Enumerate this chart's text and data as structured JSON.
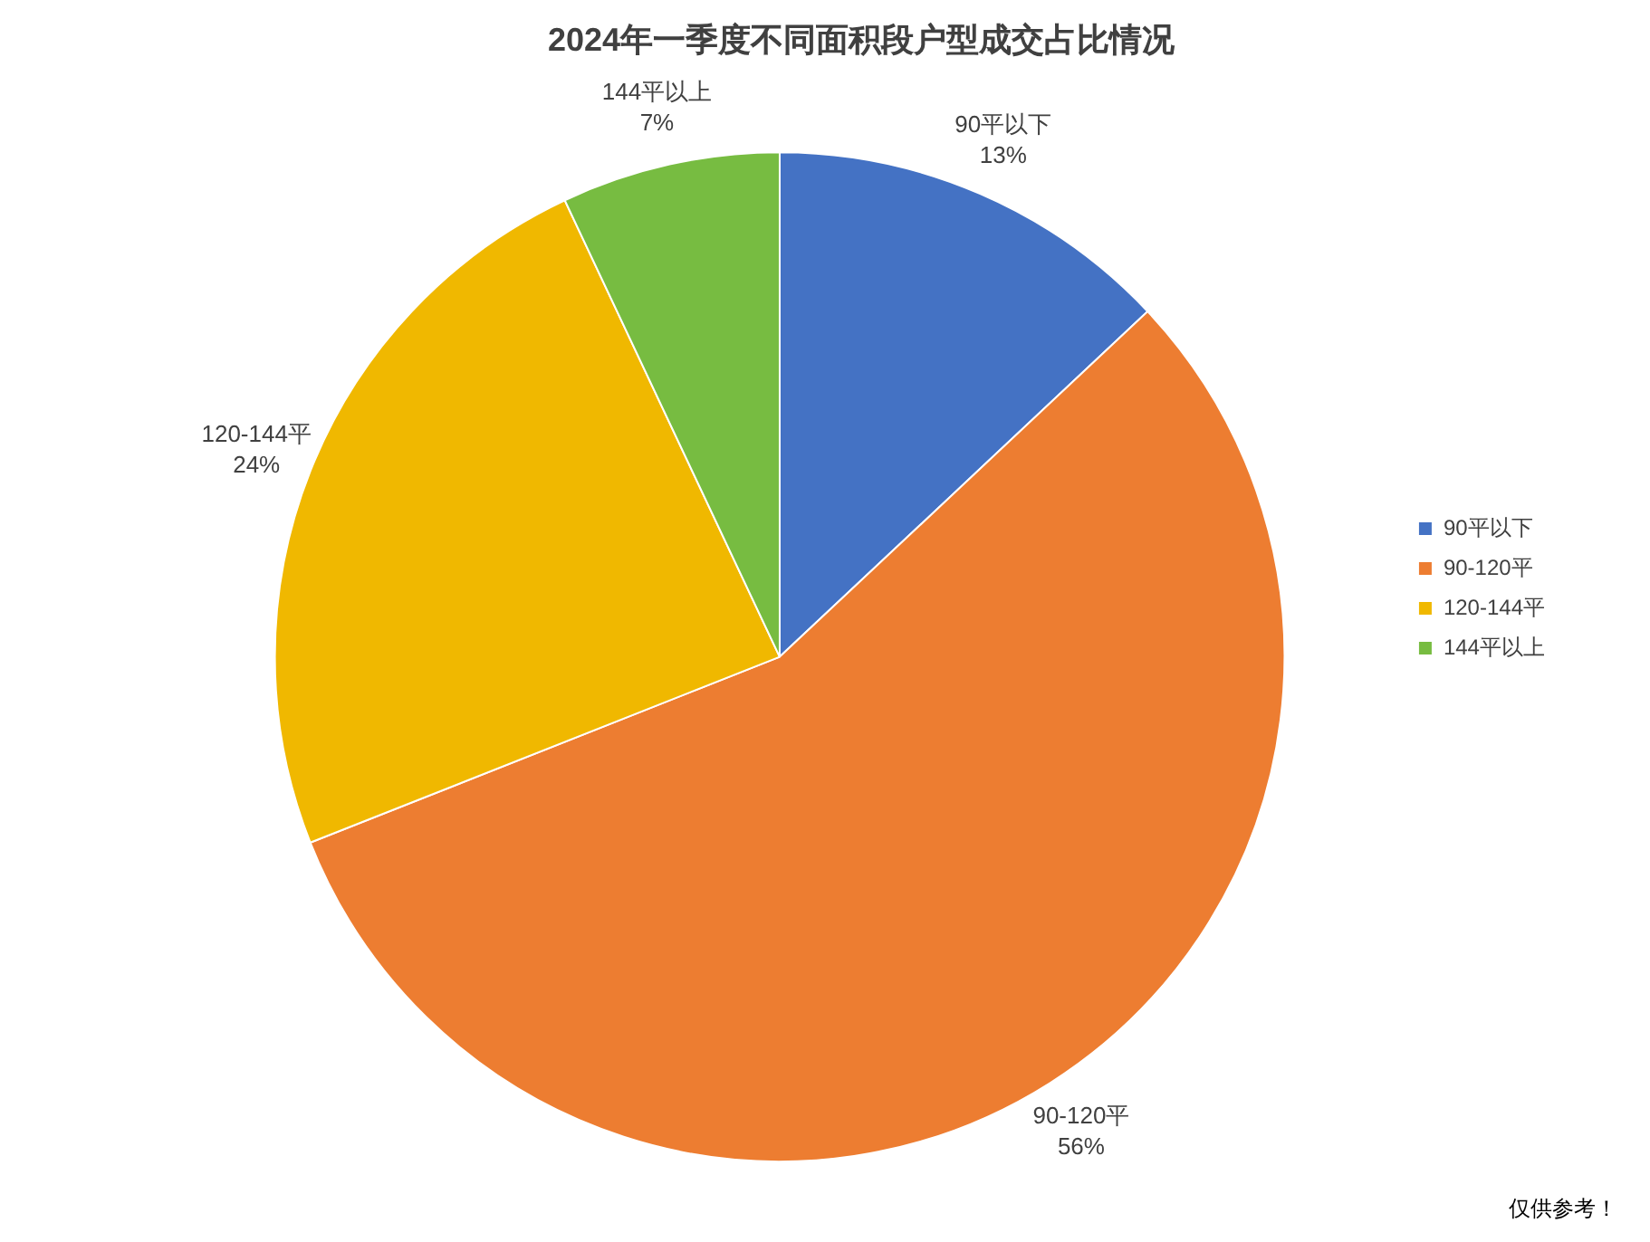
{
  "chart_data": {
    "type": "pie",
    "title": "2024年一季度不同面积段户型成交占比情况",
    "categories": [
      "90平以下",
      "90-120平",
      "120-144平",
      "144平以上"
    ],
    "values": [
      13,
      56,
      24,
      7
    ],
    "colors": [
      "#4472c4",
      "#ed7d31",
      "#f0b800",
      "#77bc41"
    ],
    "value_labels": [
      "13%",
      "56%",
      "24%",
      "7%"
    ],
    "legend": "right",
    "annotations": [
      "仅供参考！"
    ]
  }
}
